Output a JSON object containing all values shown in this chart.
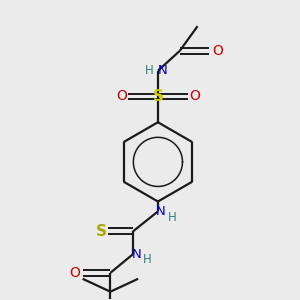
{
  "background_color": "#ebebeb",
  "bond_color": "#1a1a1a",
  "atom_colors": {
    "N": "#0000cc",
    "O": "#cc0000",
    "S_sulfonyl": "#cccc00",
    "S_thio": "#aaaa00",
    "H": "#2a8080",
    "C": "#1a1a1a"
  },
  "figsize": [
    3.0,
    3.0
  ],
  "dpi": 100
}
